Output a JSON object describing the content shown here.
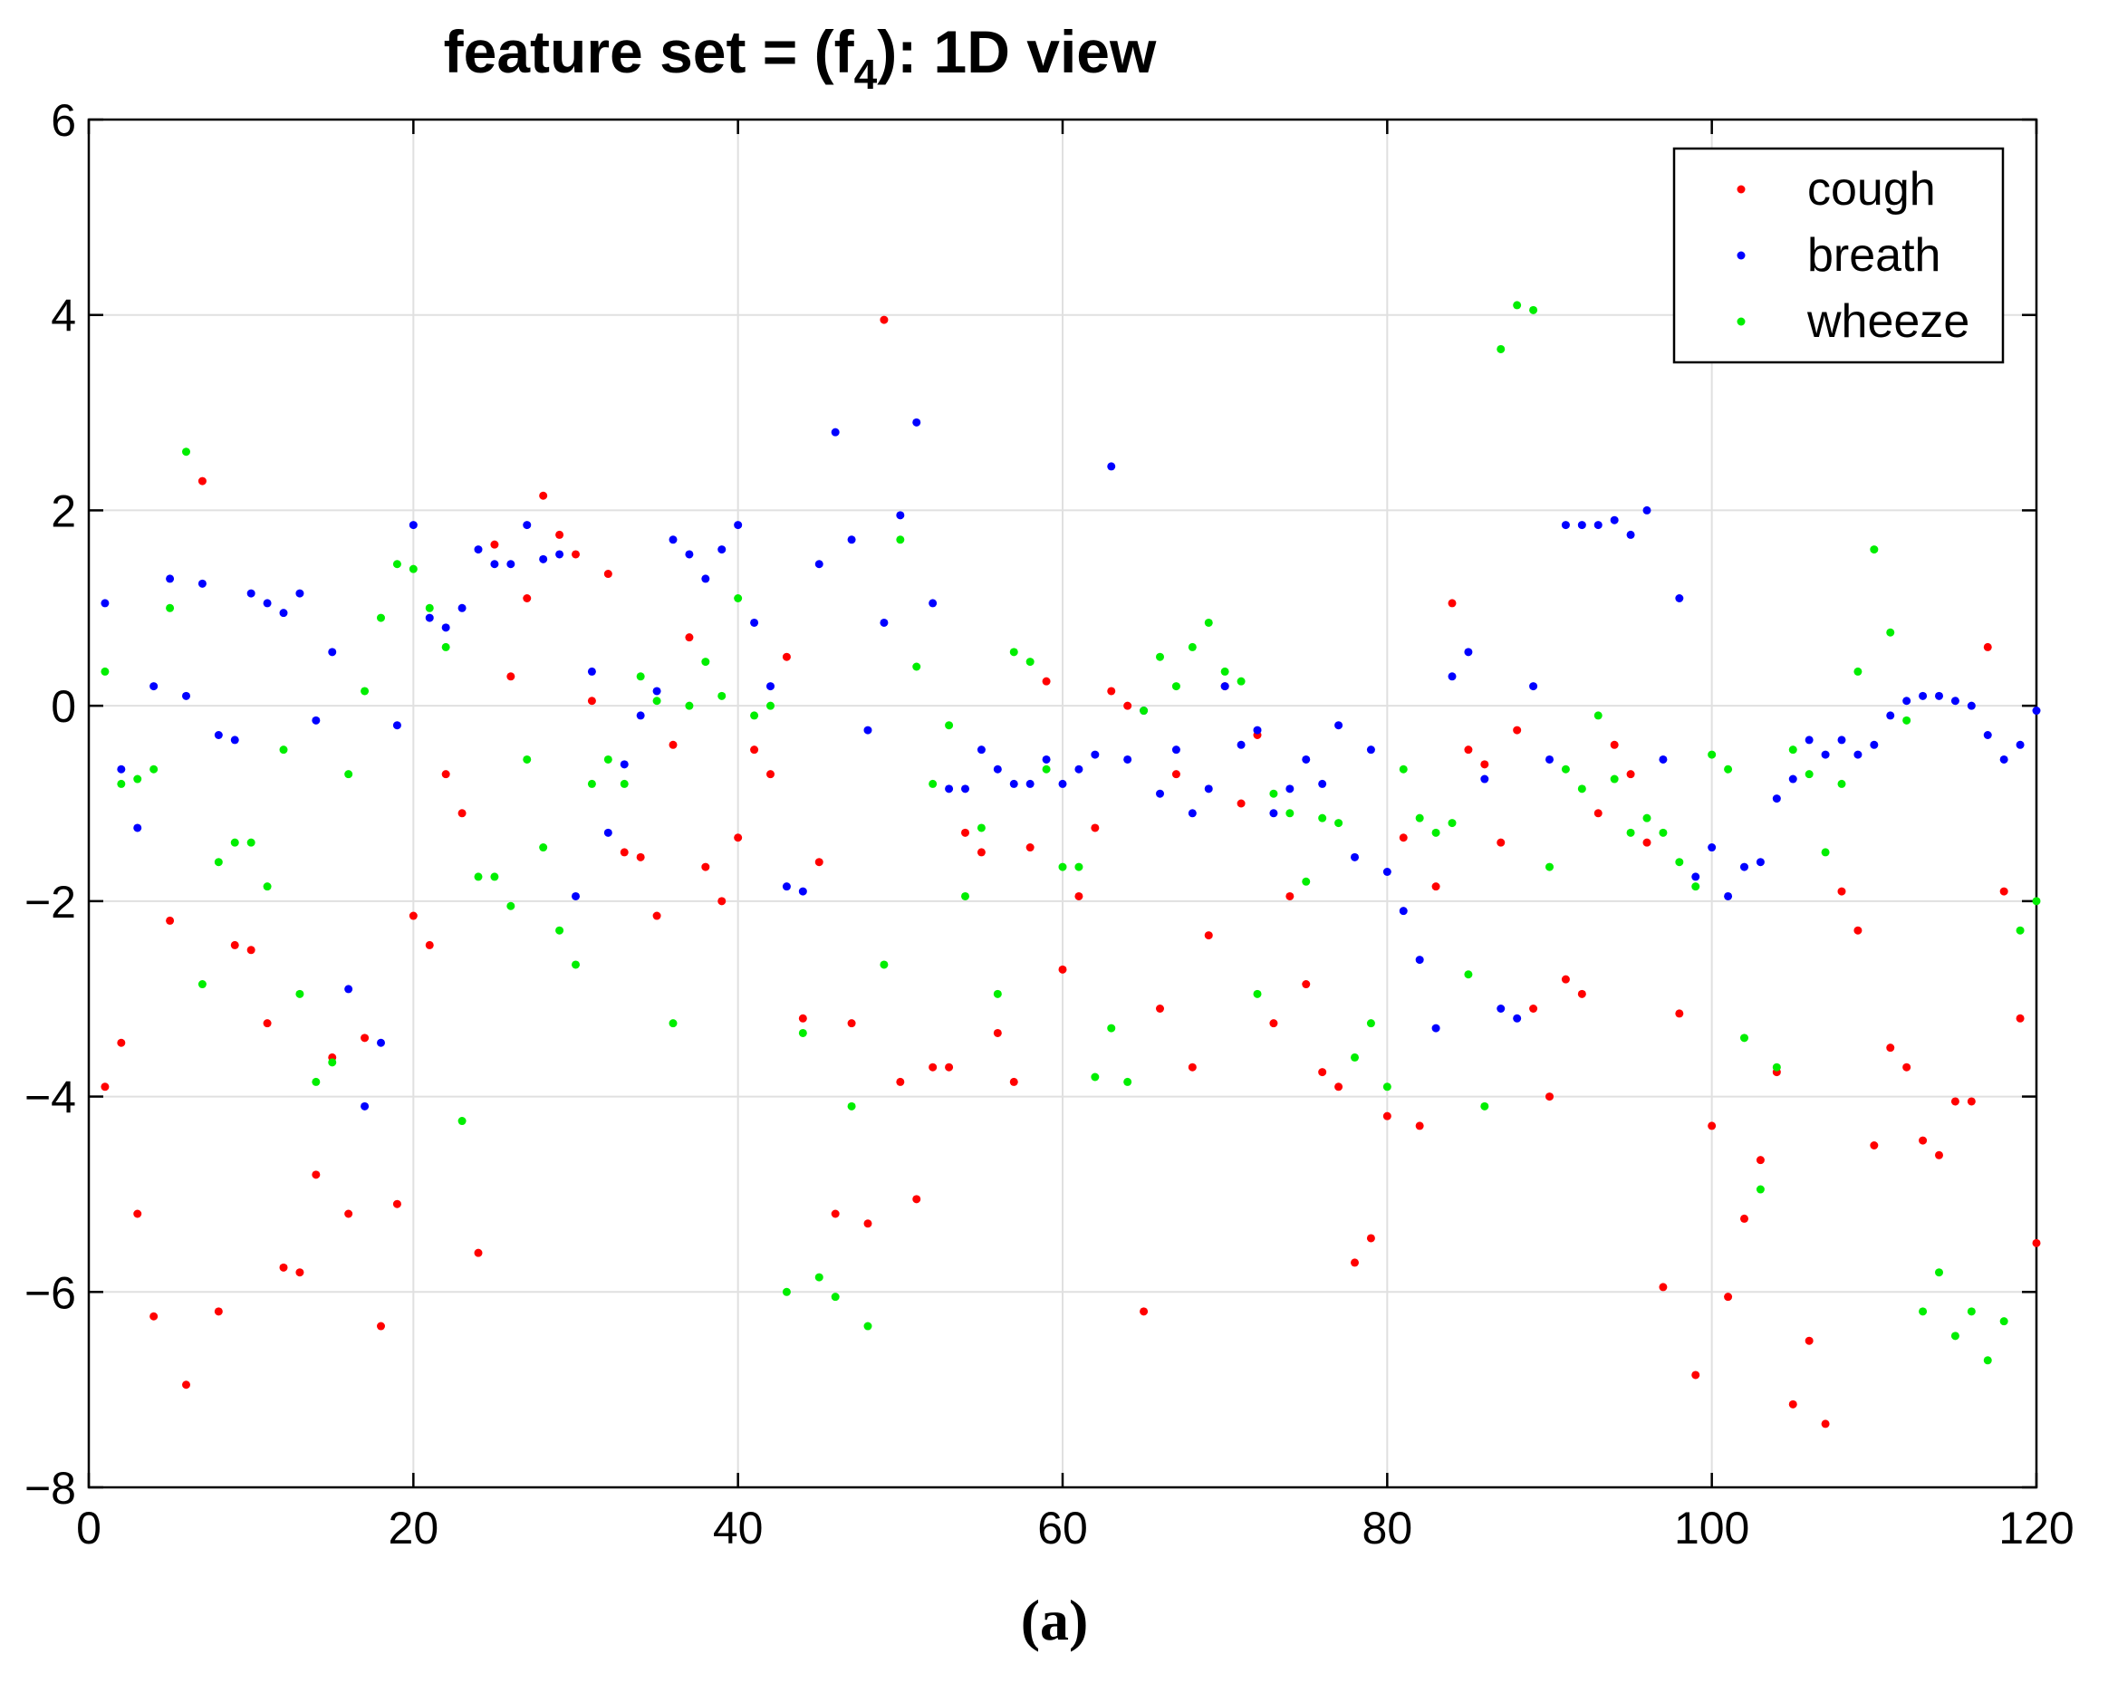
{
  "chart_data": {
    "type": "scatter",
    "title": {
      "prefix": "feature set = (f",
      "subscript": "4",
      "suffix": "): 1D view"
    },
    "xlabel": "",
    "ylabel": "",
    "xlim": [
      0,
      120
    ],
    "ylim": [
      -8,
      6
    ],
    "xticks": [
      0,
      20,
      40,
      60,
      80,
      100,
      120
    ],
    "yticks": [
      -8,
      -6,
      -4,
      -2,
      0,
      2,
      4,
      6
    ],
    "xtick_labels": [
      "0",
      "20",
      "40",
      "60",
      "80",
      "100",
      "120"
    ],
    "ytick_labels": [
      "−8",
      "−6",
      "−4",
      "−2",
      "0",
      "2",
      "4",
      "6"
    ],
    "grid": true,
    "legend_position": "top-right",
    "caption": "(a)",
    "x": [
      1,
      2,
      3,
      4,
      5,
      6,
      7,
      8,
      9,
      10,
      11,
      12,
      13,
      14,
      15,
      16,
      17,
      18,
      19,
      20,
      21,
      22,
      23,
      24,
      25,
      26,
      27,
      28,
      29,
      30,
      31,
      32,
      33,
      34,
      35,
      36,
      37,
      38,
      39,
      40,
      41,
      42,
      43,
      44,
      45,
      46,
      47,
      48,
      49,
      50,
      51,
      52,
      53,
      54,
      55,
      56,
      57,
      58,
      59,
      60,
      61,
      62,
      63,
      64,
      65,
      66,
      67,
      68,
      69,
      70,
      71,
      72,
      73,
      74,
      75,
      76,
      77,
      78,
      79,
      80,
      81,
      82,
      83,
      84,
      85,
      86,
      87,
      88,
      89,
      90,
      91,
      92,
      93,
      94,
      95,
      96,
      97,
      98,
      99,
      100,
      101,
      102,
      103,
      104,
      105,
      106,
      107,
      108,
      109,
      110,
      111,
      112,
      113,
      114,
      115,
      116,
      117,
      118,
      119,
      120
    ],
    "series": [
      {
        "name": "cough",
        "color": "#ff0000",
        "values": [
          -3.9,
          -3.45,
          -5.2,
          -6.25,
          -2.2,
          -6.95,
          2.3,
          -6.2,
          -2.45,
          -2.5,
          -3.25,
          -5.75,
          -5.8,
          -4.8,
          -3.6,
          -5.2,
          -3.4,
          -6.35,
          -5.1,
          -2.15,
          -2.45,
          -0.7,
          -1.1,
          -5.6,
          1.65,
          0.3,
          1.1,
          2.15,
          1.75,
          1.55,
          0.05,
          1.35,
          -1.5,
          -1.55,
          -2.15,
          -0.4,
          0.7,
          -1.65,
          -2.0,
          -1.35,
          -0.45,
          -0.7,
          0.5,
          -3.2,
          -1.6,
          -5.2,
          -3.25,
          -5.3,
          3.95,
          -3.85,
          -5.05,
          -3.7,
          -3.7,
          -1.3,
          -1.5,
          -3.35,
          -3.85,
          -1.45,
          0.25,
          -2.7,
          -1.95,
          -1.25,
          0.15,
          0.0,
          -6.2,
          -3.1,
          -0.7,
          -3.7,
          -2.35,
          0.2,
          -1.0,
          -0.3,
          -3.25,
          -1.95,
          -2.85,
          -3.75,
          -3.9,
          -5.7,
          -5.45,
          -4.2,
          -1.35,
          -4.3,
          -1.85,
          1.05,
          -0.45,
          -0.6,
          -1.4,
          -0.25,
          -3.1,
          -4.0,
          -2.8,
          -2.95,
          -1.1,
          -0.4,
          -0.7,
          -1.4,
          -5.95,
          -3.15,
          -6.85,
          -4.3,
          -6.05,
          -5.25,
          -4.65,
          -3.75,
          -7.15,
          -6.5,
          -7.35,
          -1.9,
          -2.3,
          -4.5,
          -3.5,
          -3.7,
          -4.45,
          -4.6,
          -4.05,
          -4.05,
          0.6,
          -1.9,
          -3.2,
          -5.5
        ]
      },
      {
        "name": "breath",
        "color": "#0000ff",
        "values": [
          1.05,
          -0.65,
          -1.25,
          0.2,
          1.3,
          0.1,
          1.25,
          -0.3,
          -0.35,
          1.15,
          1.05,
          0.95,
          1.15,
          -0.15,
          0.55,
          -2.9,
          -4.1,
          -3.45,
          -0.2,
          1.85,
          0.9,
          0.8,
          1.0,
          1.6,
          1.45,
          1.45,
          1.85,
          1.5,
          1.55,
          -1.95,
          0.35,
          -1.3,
          -0.6,
          -0.1,
          0.15,
          1.7,
          1.55,
          1.3,
          1.6,
          1.85,
          0.85,
          0.2,
          -1.85,
          -1.9,
          1.45,
          2.8,
          1.7,
          -0.25,
          0.85,
          1.95,
          2.9,
          1.05,
          -0.85,
          -0.85,
          -0.45,
          -0.65,
          -0.8,
          -0.8,
          -0.55,
          -0.8,
          -0.65,
          -0.5,
          2.45,
          -0.55,
          -0.05,
          -0.9,
          -0.45,
          -1.1,
          -0.85,
          0.2,
          -0.4,
          -0.25,
          -1.1,
          -0.85,
          -0.55,
          -0.8,
          -0.2,
          -1.55,
          -0.45,
          -1.7,
          -2.1,
          -2.6,
          -3.3,
          0.3,
          0.55,
          -0.75,
          -3.1,
          -3.2,
          0.2,
          -0.55,
          1.85,
          1.85,
          1.85,
          1.9,
          1.75,
          2.0,
          -0.55,
          1.1,
          -1.75,
          -1.45,
          -1.95,
          -1.65,
          -1.6,
          -0.95,
          -0.75,
          -0.35,
          -0.5,
          -0.35,
          -0.5,
          -0.4,
          -0.1,
          0.05,
          0.1,
          0.1,
          0.05,
          0.0,
          -0.3,
          -0.55,
          -0.4,
          -0.05
        ]
      },
      {
        "name": "wheeze",
        "color": "#00ee00",
        "values": [
          0.35,
          -0.8,
          -0.75,
          -0.65,
          1.0,
          2.6,
          -2.85,
          -1.6,
          -1.4,
          -1.4,
          -1.85,
          -0.45,
          -2.95,
          -3.85,
          -3.65,
          -0.7,
          0.15,
          0.9,
          1.45,
          1.4,
          1.0,
          0.6,
          -4.25,
          -1.75,
          -1.75,
          -2.05,
          -0.55,
          -1.45,
          -2.3,
          -2.65,
          -0.8,
          -0.55,
          -0.8,
          0.3,
          0.05,
          -3.25,
          0.0,
          0.45,
          0.1,
          1.1,
          -0.1,
          0.0,
          -6.0,
          -3.35,
          -5.85,
          -6.05,
          -4.1,
          -6.35,
          -2.65,
          1.7,
          0.4,
          -0.8,
          -0.2,
          -1.95,
          -1.25,
          -2.95,
          0.55,
          0.45,
          -0.65,
          -1.65,
          -1.65,
          -3.8,
          -3.3,
          -3.85,
          -0.05,
          0.5,
          0.2,
          0.6,
          0.85,
          0.35,
          0.25,
          -2.95,
          -0.9,
          -1.1,
          -1.8,
          -1.15,
          -1.2,
          -3.6,
          -3.25,
          -3.9,
          -0.65,
          -1.15,
          -1.3,
          -1.2,
          -2.75,
          -4.1,
          3.65,
          4.1,
          4.05,
          -1.65,
          -0.65,
          -0.85,
          -0.1,
          -0.75,
          -1.3,
          -1.15,
          -1.3,
          -1.6,
          -1.85,
          -0.5,
          -0.65,
          -3.4,
          -4.95,
          -3.7,
          -0.45,
          -0.7,
          -1.5,
          -0.8,
          0.35,
          1.6,
          0.75,
          -0.15,
          -6.2,
          -5.8,
          -6.45,
          -6.2,
          -6.7,
          -6.3,
          -2.3,
          -2.0
        ]
      }
    ]
  }
}
